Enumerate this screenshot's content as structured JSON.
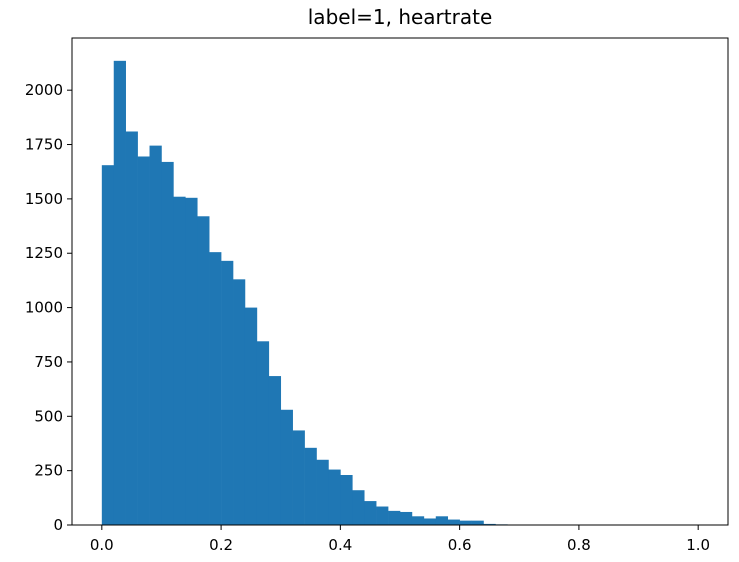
{
  "chart_data": {
    "type": "bar",
    "subtype": "histogram",
    "title": "label=1, heartrate",
    "xlabel": "",
    "ylabel": "",
    "xlim": [
      -0.05,
      1.05
    ],
    "ylim": [
      0,
      2240
    ],
    "grid": false,
    "bar_color": "#1f77b4",
    "bin_width": 0.02,
    "bin_edges_start": 0.0,
    "x_ticks": [
      {
        "value": 0.0,
        "label": "0.0"
      },
      {
        "value": 0.2,
        "label": "0.2"
      },
      {
        "value": 0.4,
        "label": "0.4"
      },
      {
        "value": 0.6,
        "label": "0.6"
      },
      {
        "value": 0.8,
        "label": "0.8"
      },
      {
        "value": 1.0,
        "label": "1.0"
      }
    ],
    "y_ticks": [
      {
        "value": 0,
        "label": "0"
      },
      {
        "value": 250,
        "label": "250"
      },
      {
        "value": 500,
        "label": "500"
      },
      {
        "value": 750,
        "label": "750"
      },
      {
        "value": 1000,
        "label": "1000"
      },
      {
        "value": 1250,
        "label": "1250"
      },
      {
        "value": 1500,
        "label": "1500"
      },
      {
        "value": 1750,
        "label": "1750"
      },
      {
        "value": 2000,
        "label": "2000"
      }
    ],
    "values": [
      1655,
      2135,
      1810,
      1695,
      1745,
      1670,
      1510,
      1505,
      1420,
      1255,
      1215,
      1130,
      1000,
      845,
      685,
      530,
      435,
      355,
      300,
      255,
      230,
      160,
      110,
      85,
      65,
      60,
      40,
      30,
      40,
      25,
      20,
      20,
      5,
      3,
      2,
      1,
      1,
      1,
      1,
      0,
      0,
      0,
      0,
      0,
      0,
      0,
      0,
      0,
      0,
      1
    ]
  }
}
